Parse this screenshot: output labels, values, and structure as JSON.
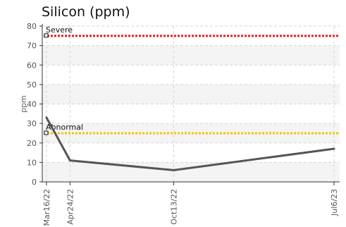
{
  "chart_data": {
    "type": "line",
    "title": "Silicon (ppm)",
    "xlabel": "",
    "ylabel": "ppm",
    "ylim": [
      0,
      80
    ],
    "yticks": [
      0,
      10,
      20,
      30,
      40,
      50,
      60,
      70,
      80
    ],
    "categories": [
      "Mar16/22",
      "Apr24/22",
      "Oct13/22",
      "Jul6/23"
    ],
    "x": [
      "2022-03-16",
      "2022-04-24",
      "2022-10-13",
      "2023-07-06"
    ],
    "series": [
      {
        "values": [
          33,
          11,
          6,
          17
        ],
        "color": "#555555"
      }
    ],
    "reference_lines": [
      {
        "name": "Severe",
        "value": 75,
        "color": "#e51c1c"
      },
      {
        "name": "Abnormal",
        "value": 25,
        "color": "#f2c500"
      }
    ],
    "grid": true,
    "alternating_bands": true,
    "legend": "none"
  }
}
